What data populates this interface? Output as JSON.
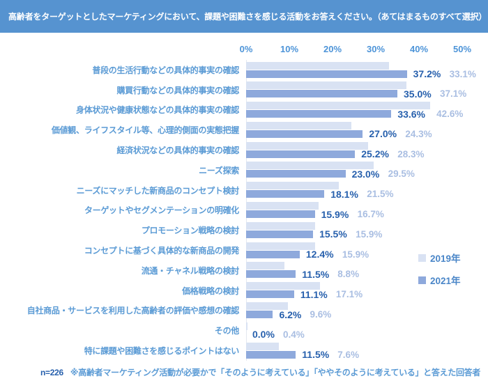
{
  "header": {
    "title": "高齢者をターゲットとしたマーケティングにおいて、課題や困難さを感じる活動をお答えください。（あてはまるものすべて選択）",
    "bg_color": "#5693D0",
    "text_color": "#FFFFFF"
  },
  "chart_data": {
    "type": "bar",
    "orientation": "horizontal",
    "title": "高齢者をターゲットとしたマーケティングにおいて、課題や困難さを感じる活動をお答えください。（あてはまるものすべて選択）",
    "xlabel": "",
    "ylabel": "",
    "xlim": [
      0,
      50
    ],
    "grid": false,
    "legend_position": "right",
    "categories": [
      "普段の生活行動などの具体的事実の確認",
      "購買行動などの具体的事実の確認",
      "身体状況や健康状態などの具体的事実の確認",
      "価値観、ライフスタイル等、心理的側面の実態把握",
      "経済状況などの具体的事実の確認",
      "ニーズ探索",
      "ニーズにマッチした新商品のコンセプト検討",
      "ターゲットやセグメンテーションの明確化",
      "プロモーション戦略の検討",
      "コンセプトに基づく具体的な新商品の開発",
      "流通・チャネル戦略の検討",
      "価格戦略の検討",
      "自社商品・サービスを利用した高齢者の評価や感想の確認",
      "その他",
      "特に課題や困難さを感じるポイントはない"
    ],
    "series": [
      {
        "name": "2019年",
        "values": [
          33.1,
          37.1,
          42.6,
          24.3,
          28.3,
          29.5,
          21.5,
          16.7,
          15.9,
          15.9,
          8.8,
          17.1,
          9.6,
          0.4,
          7.6
        ],
        "color": "#D9E2F3",
        "label_color": "#A9BEE2"
      },
      {
        "name": "2021年",
        "values": [
          37.2,
          35.0,
          33.6,
          27.0,
          25.2,
          23.0,
          18.1,
          15.9,
          15.5,
          12.4,
          11.5,
          11.1,
          6.2,
          0.0,
          11.5
        ],
        "color": "#8EA9DC",
        "label_color": "#2760AD"
      }
    ],
    "x_axis": {
      "ticks": [
        "0%",
        "10%",
        "20%",
        "30%",
        "40%",
        "50%"
      ],
      "min": 0,
      "max": 50,
      "tick_color": "#4D94D8"
    },
    "legend": [
      {
        "label": "2019年",
        "color": "#D9E2F3"
      },
      {
        "label": "2021年",
        "color": "#8EA9DC"
      }
    ],
    "category_label_color": "#5B9BD5"
  },
  "footer": {
    "n_label": "n=226",
    "note": "※高齢者マーケティング活動が必要かで「そのように考えている」「ややそのように考えている」と答えた回答者"
  }
}
